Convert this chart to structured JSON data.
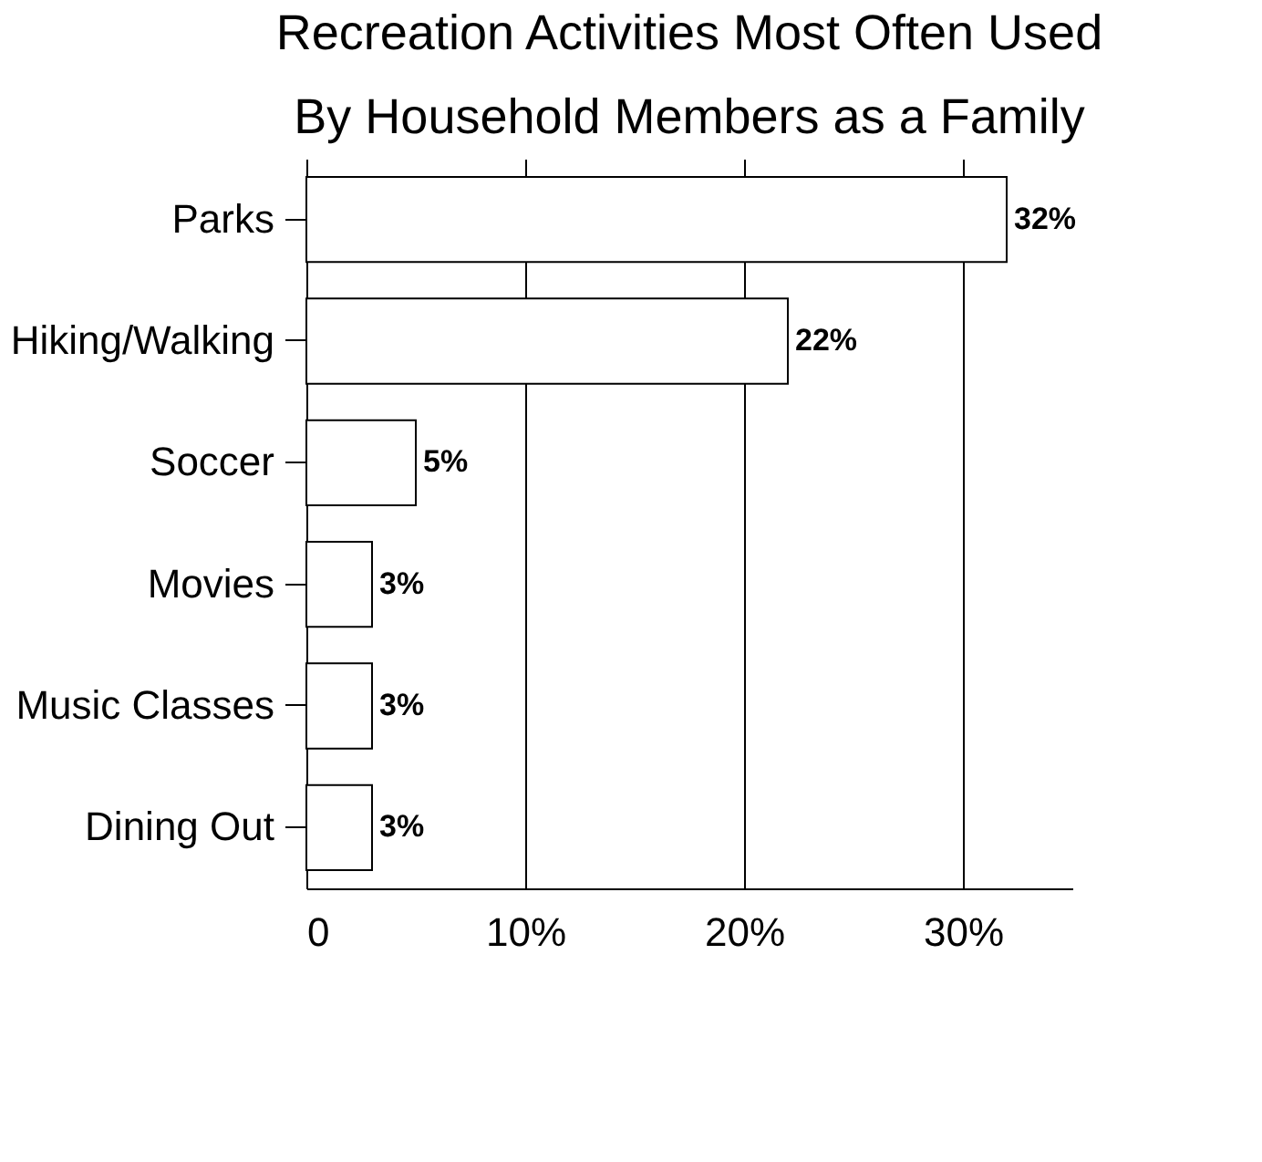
{
  "chart_data": {
    "type": "bar",
    "orientation": "horizontal",
    "title": [
      "Recreation Activities Most Often Used",
      "By Household Members as a Family"
    ],
    "categories": [
      "Parks",
      "Hiking/Walking",
      "Soccer",
      "Movies",
      "Music Classes",
      "Dining Out"
    ],
    "values": [
      32,
      22,
      5,
      3,
      3,
      3
    ],
    "value_labels": [
      "32%",
      "22%",
      "5%",
      "3%",
      "3%",
      "3%"
    ],
    "color": "#ffffff",
    "xlim": [
      0,
      35
    ],
    "xticks": [
      0,
      {
        "value": 10,
        "label": "10%"
      },
      {
        "value": 20,
        "label": "20%"
      },
      {
        "value": 30,
        "label": "30%"
      }
    ],
    "grid": "x"
  }
}
